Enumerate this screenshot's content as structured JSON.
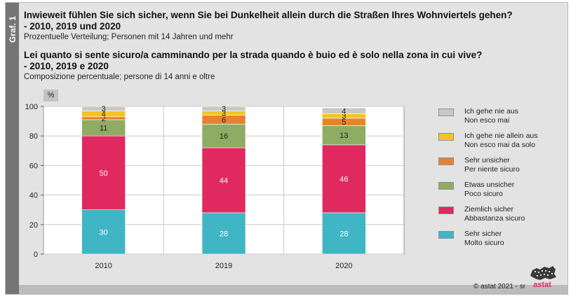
{
  "figure_label": "Graf. 1",
  "title_de_line1": "Inwieweit fühlen Sie sich sicher, wenn Sie bei Dunkelheit allein durch die Straßen Ihres Wohnviertels gehen?",
  "title_de_line2": "- 2010, 2019 und 2020",
  "subtitle_de": "Prozentuelle Verteilung; Personen mit 14 Jahren und mehr",
  "title_it_line1": "Lei quanto si sente sicuro/a camminando per la strada quando è buio ed è solo nella zona in cui vive?",
  "title_it_line2": "- 2010, 2019 e 2020",
  "subtitle_it": "Composizione percentuale; persone di 14 anni e oltre",
  "footer": "©  astat 2021 - sr",
  "logo_text": "astat",
  "chart_data": {
    "type": "bar",
    "stacked": true,
    "ylabel": "%",
    "ylim": [
      0,
      100
    ],
    "yticks": [
      0,
      20,
      40,
      60,
      80,
      100
    ],
    "grid": true,
    "legend_position": "right",
    "categories": [
      "2010",
      "2019",
      "2020"
    ],
    "series": [
      {
        "name": "Sehr sicher / Molto sicuro",
        "legend_de": "Sehr sicher",
        "legend_it": "Molto sicuro",
        "color": "#40b5c3",
        "values": [
          30,
          28,
          28
        ],
        "labels": [
          "30",
          "28",
          "28"
        ]
      },
      {
        "name": "Ziemlich sicher / Abbastanza sicuro",
        "legend_de": "Ziemlich sicher",
        "legend_it": "Abbastanza sicuro",
        "color": "#e0295f",
        "values": [
          50,
          44,
          46
        ],
        "labels": [
          "50",
          "44",
          "46"
        ]
      },
      {
        "name": "Etwas unsicher / Poco sicuro",
        "legend_de": "Etwas unsicher",
        "legend_it": "Poco sicuro",
        "color": "#8fac63",
        "values": [
          11,
          16,
          13
        ],
        "labels": [
          "11",
          "16",
          "13"
        ]
      },
      {
        "name": "Sehr unsicher / Per niente sicuro",
        "legend_de": "Sehr unsicher",
        "legend_it": "Per niente sicuro",
        "color": "#e98230",
        "values": [
          2,
          6,
          5
        ],
        "labels": [
          "2",
          "6",
          "5"
        ]
      },
      {
        "name": "Ich gehe nie allein aus / Non esco mai da solo",
        "legend_de": "Ich gehe nie allein aus",
        "legend_it": "Non esco mai da solo",
        "color": "#f4c424",
        "values": [
          4,
          3,
          3
        ],
        "labels": [
          "4",
          "3",
          "3"
        ]
      },
      {
        "name": "Ich gehe nie aus / Non esco mai",
        "legend_de": "Ich gehe nie aus",
        "legend_it": "Non esco mai",
        "color": "#c8c8c8",
        "values": [
          3,
          3,
          4
        ],
        "labels": [
          "3",
          "3",
          "4"
        ]
      }
    ]
  }
}
